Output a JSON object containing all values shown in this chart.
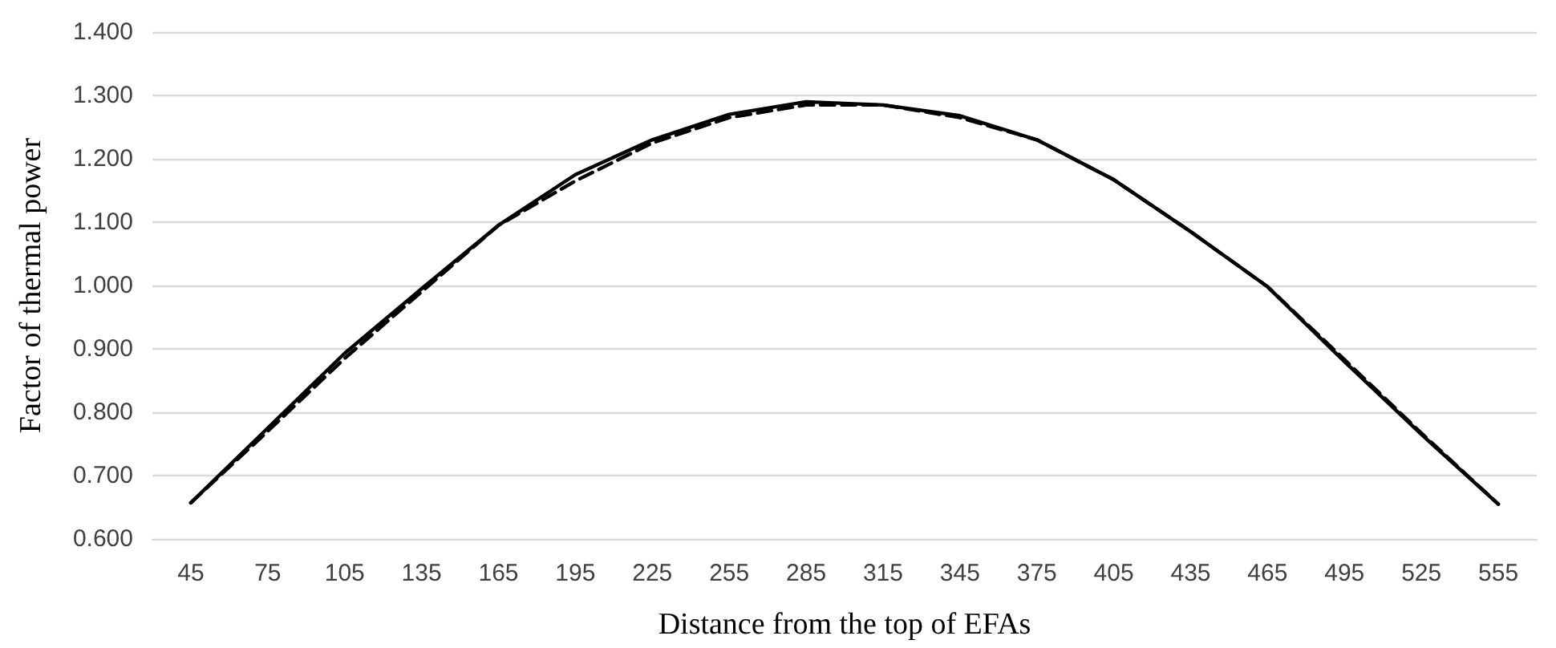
{
  "chart_data": {
    "type": "line",
    "xlabel": "Distance from the top of EFAs",
    "ylabel": "Factor of thermal power",
    "categories": [
      "45",
      "75",
      "105",
      "135",
      "165",
      "195",
      "225",
      "255",
      "285",
      "315",
      "345",
      "375",
      "405",
      "435",
      "465",
      "495",
      "525",
      "555"
    ],
    "series": [
      {
        "color": "#000000",
        "line_style": "solid",
        "values": [
          0.657,
          0.775,
          0.893,
          0.995,
          1.095,
          1.175,
          1.23,
          1.27,
          1.29,
          1.285,
          1.268,
          1.23,
          1.167,
          1.085,
          0.998,
          0.88,
          0.765,
          0.655
        ]
      },
      {
        "color": "#000000",
        "line_style": "dashed",
        "values": [
          0.657,
          0.77,
          0.885,
          0.99,
          1.095,
          1.165,
          1.225,
          1.265,
          1.285,
          1.285,
          1.265,
          1.23,
          1.167,
          1.085,
          0.998,
          0.883,
          0.767,
          0.655
        ]
      }
    ],
    "ylim": [
      0.6,
      1.4
    ],
    "yticks": [
      {
        "value": 0.6,
        "label": "0.600"
      },
      {
        "value": 0.7,
        "label": "0.700"
      },
      {
        "value": 0.8,
        "label": "0.800"
      },
      {
        "value": 0.9,
        "label": "0.900"
      },
      {
        "value": 1.0,
        "label": "1.000"
      },
      {
        "value": 1.1,
        "label": "1.100"
      },
      {
        "value": 1.2,
        "label": "1.200"
      },
      {
        "value": 1.3,
        "label": "1.300"
      },
      {
        "value": 1.4,
        "label": "1.400"
      }
    ],
    "grid": "y",
    "marker": "none"
  }
}
